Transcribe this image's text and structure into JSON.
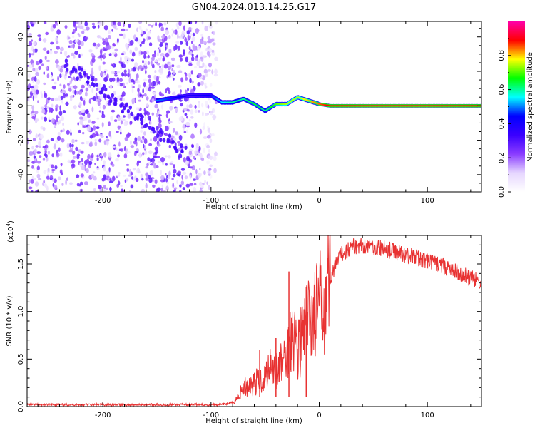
{
  "chart_data": [
    {
      "type": "heatmap",
      "title": "GN04.2024.013.14.25.G17",
      "xlabel": "Height of straight line (km)",
      "ylabel": "Frequency (Hz)",
      "xlim": [
        -270,
        150
      ],
      "ylim": [
        -50,
        49
      ],
      "xticks": [
        -200,
        -100,
        0,
        100
      ],
      "xtick_labels": [
        "-200",
        "-100",
        "0",
        "100"
      ],
      "yticks": [
        -40,
        -20,
        0,
        20,
        40
      ],
      "ytick_labels": [
        "-40",
        "-20",
        "0",
        "20",
        "40"
      ],
      "colorbar": {
        "label": "Normalized spectral amplitude",
        "range": [
          0,
          1
        ],
        "ticks": [
          0.0,
          0.2,
          0.4,
          0.6,
          0.8
        ],
        "tick_labels": [
          "0.0",
          "0.2",
          "0.4",
          "0.6",
          "0.8"
        ],
        "colormap": [
          "#ffffff",
          "#e6d6ff",
          "#8a3cff",
          "#3a00ff",
          "#0000ff",
          "#00ffff",
          "#00ff00",
          "#ffff00",
          "#ff0000",
          "#ff00aa"
        ]
      },
      "noise_region": {
        "x_range": [
          -270,
          -95
        ],
        "frequency_range": [
          -50,
          49
        ],
        "amplitude": [
          0.05,
          0.3
        ]
      },
      "signal_ridge": [
        {
          "x": -150,
          "f": 3,
          "amp": 0.5
        },
        {
          "x": -120,
          "f": 6,
          "amp": 0.4
        },
        {
          "x": -100,
          "f": 6,
          "amp": 0.45
        },
        {
          "x": -90,
          "f": 2,
          "amp": 0.55
        },
        {
          "x": -80,
          "f": 2,
          "amp": 0.6
        },
        {
          "x": -70,
          "f": 4,
          "amp": 0.6
        },
        {
          "x": -60,
          "f": 1,
          "amp": 0.65
        },
        {
          "x": -50,
          "f": -3,
          "amp": 0.6
        },
        {
          "x": -40,
          "f": 1,
          "amp": 0.7
        },
        {
          "x": -30,
          "f": 1,
          "amp": 0.75
        },
        {
          "x": -20,
          "f": 5,
          "amp": 0.75
        },
        {
          "x": -10,
          "f": 3,
          "amp": 0.8
        },
        {
          "x": 0,
          "f": 1,
          "amp": 0.85
        },
        {
          "x": 10,
          "f": 0,
          "amp": 0.9
        },
        {
          "x": 50,
          "f": 0,
          "amp": 0.92
        },
        {
          "x": 100,
          "f": 0,
          "amp": 0.92
        },
        {
          "x": 150,
          "f": 0,
          "amp": 0.9
        }
      ]
    },
    {
      "type": "line",
      "xlabel": "Height of straight line (km)",
      "ylabel": "SNR (10 * v/v)",
      "scale_label": "(x10",
      "scale_exponent": "4",
      "scale_close": ")",
      "xlim": [
        -270,
        150
      ],
      "ylim": [
        0,
        1.8
      ],
      "xticks": [
        -200,
        -100,
        0,
        100
      ],
      "xtick_labels": [
        "-200",
        "-100",
        "0",
        "100"
      ],
      "yticks": [
        0.0,
        0.5,
        1.0,
        1.5
      ],
      "ytick_labels": [
        "0.0",
        "0.5",
        "1.0",
        "1.5"
      ],
      "series": [
        {
          "color": "#e83232",
          "x": [
            -270,
            -200,
            -150,
            -100,
            -90,
            -80,
            -75,
            -70,
            -60,
            -50,
            -45,
            -40,
            -35,
            -30,
            -27,
            -25,
            -20,
            -15,
            -10,
            0,
            10,
            20,
            30,
            40,
            50,
            60,
            70,
            80,
            90,
            100,
            110,
            120,
            130,
            140,
            150
          ],
          "y": [
            0.02,
            0.02,
            0.02,
            0.02,
            0.02,
            0.04,
            0.1,
            0.2,
            0.25,
            0.3,
            0.5,
            0.35,
            0.45,
            0.55,
            0.7,
            0.9,
            0.6,
            0.75,
            0.9,
            1.05,
            1.35,
            1.6,
            1.68,
            1.7,
            1.68,
            1.66,
            1.63,
            1.6,
            1.57,
            1.53,
            1.5,
            1.45,
            1.4,
            1.35,
            1.3
          ]
        }
      ],
      "spikes": [
        {
          "x": -28,
          "y": 1.42
        },
        {
          "x": -12,
          "y": 1.26
        },
        {
          "x": -55,
          "y": 0.6
        },
        {
          "x": -40,
          "y": 0.72
        }
      ]
    }
  ]
}
